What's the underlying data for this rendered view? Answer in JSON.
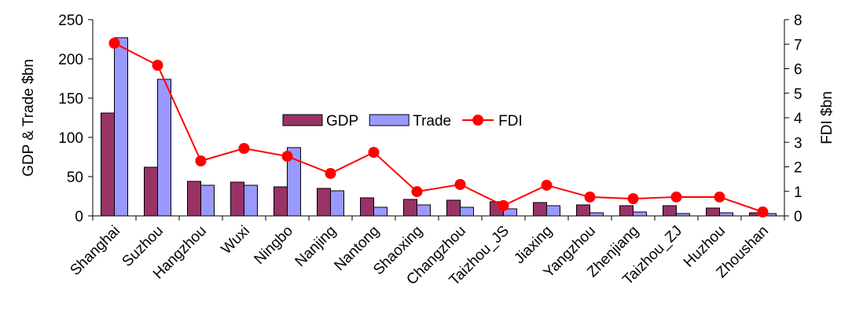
{
  "chart_data": {
    "type": "bar-line",
    "categories": [
      "Shanghai",
      "Suzhou",
      "Hangzhou",
      "Wuxi",
      "Ningbo",
      "Nanjing",
      "Nantong",
      "Shaoxing",
      "Changzhou",
      "Taizhou_JS",
      "Jiaxing",
      "Yangzhou",
      "Zhenjiang",
      "Taizhou_ZJ",
      "Huzhou",
      "Zhoushan"
    ],
    "series": [
      {
        "name": "GDP",
        "type": "bar",
        "color": "#993366",
        "values": [
          131,
          62,
          44,
          43,
          37,
          35,
          23,
          21,
          20,
          18,
          17,
          14,
          13,
          13,
          10,
          4
        ]
      },
      {
        "name": "Trade",
        "type": "bar",
        "color": "#9999ff",
        "values": [
          227,
          174,
          39,
          39,
          87,
          32,
          11,
          14,
          11,
          9,
          13,
          4,
          5,
          3,
          4,
          3
        ]
      },
      {
        "name": "FDI",
        "type": "line",
        "axis": "y2",
        "color": "#ff0000",
        "values": [
          7.04,
          6.14,
          2.24,
          2.75,
          2.43,
          1.73,
          2.59,
          0.99,
          1.28,
          0.42,
          1.25,
          0.77,
          0.7,
          0.77,
          0.77,
          0.16
        ]
      }
    ],
    "y_label": "GDP & Trade $bn",
    "y2_label": "FDI $bn",
    "ylim": [
      0,
      250
    ],
    "yticks": [
      0,
      50,
      100,
      150,
      200,
      250
    ],
    "y2lim": [
      0,
      8
    ],
    "y2ticks": [
      0,
      1,
      2,
      3,
      4,
      5,
      6,
      7,
      8
    ],
    "legend": "center"
  }
}
